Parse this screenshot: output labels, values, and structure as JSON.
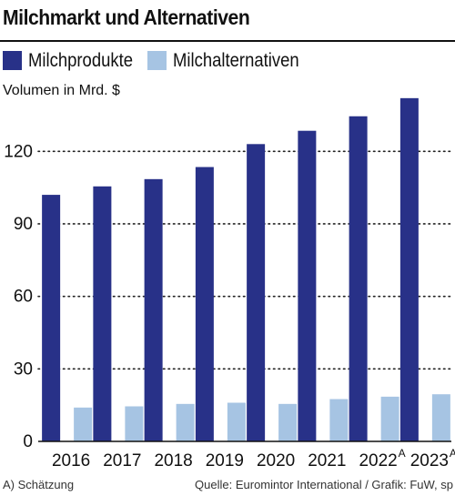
{
  "title": "Milchmarkt und Alternativen",
  "legend": [
    {
      "label": "Milchprodukte",
      "color": "#283188"
    },
    {
      "label": "Milchalternativen",
      "color": "#a6c4e3"
    }
  ],
  "ylabel": "Volumen in Mrd. $",
  "footer": {
    "note": "A) Schätzung",
    "source": "Quelle: Euromintor International / Grafik: FuW, sp"
  },
  "chart_data": {
    "type": "bar",
    "title": "Milchmarkt und Alternativen",
    "ylabel": "Volumen in Mrd. $",
    "xlabel": "",
    "ylim": [
      0,
      140
    ],
    "yticks": [
      0,
      30,
      60,
      90,
      120
    ],
    "grid": true,
    "legend_position": "top",
    "categories": [
      {
        "label": "2016",
        "sup": ""
      },
      {
        "label": "2017",
        "sup": ""
      },
      {
        "label": "2018",
        "sup": ""
      },
      {
        "label": "2019",
        "sup": ""
      },
      {
        "label": "2020",
        "sup": ""
      },
      {
        "label": "2021",
        "sup": ""
      },
      {
        "label": "2022",
        "sup": "A"
      },
      {
        "label": "2023",
        "sup": "A"
      }
    ],
    "series": [
      {
        "name": "Milchprodukte",
        "color": "#283188",
        "values": [
          102,
          105.5,
          108.5,
          113.5,
          123,
          128.5,
          134.5,
          142
        ]
      },
      {
        "name": "Milchalternativen",
        "color": "#a6c4e3",
        "values": [
          14,
          14.5,
          15.5,
          16,
          15.5,
          17.5,
          18.5,
          19.5
        ]
      }
    ]
  }
}
